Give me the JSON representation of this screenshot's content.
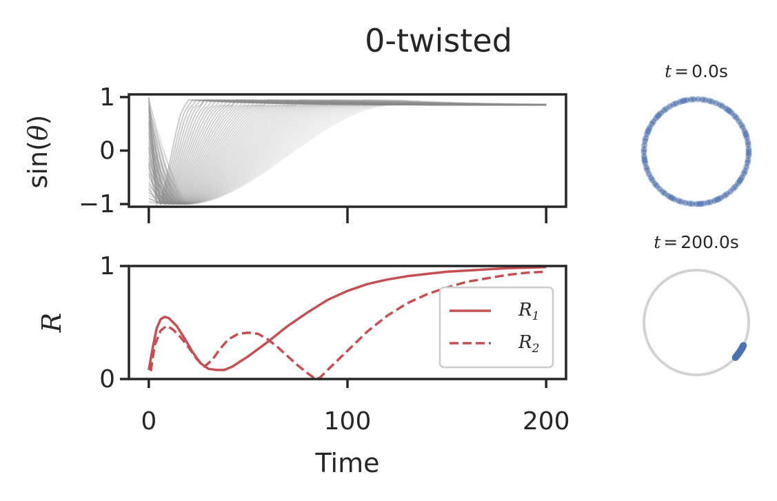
{
  "title": "0-twisted",
  "colors": {
    "axis": "#262626",
    "trajectory": "#8c8c8c",
    "order_param": "#c44e52",
    "oscillator": "#4c72b0",
    "ring": "#d3d3d3"
  },
  "chart_data": [
    {
      "type": "line",
      "panel": "sin-theta",
      "title": "",
      "xlabel": "",
      "ylabel": "sin(θ)",
      "ylabel_func": "sin",
      "ylabel_var": "θ",
      "xlim": [
        -10,
        210
      ],
      "ylim": [
        -1.05,
        1.05
      ],
      "xticks": [
        0,
        100,
        200
      ],
      "yticks": [
        -1,
        0,
        1
      ],
      "ytick_labels": [
        "−1",
        "0",
        "1"
      ],
      "grid": false,
      "description_of_series": "many oscillator trajectories",
      "n_trajectories": 60,
      "final_value": 0.85
    },
    {
      "type": "line",
      "panel": "order-parameter",
      "xlabel": "Time",
      "ylabel": "R",
      "xlim": [
        -10,
        210
      ],
      "ylim": [
        0,
        1
      ],
      "xticks": [
        0,
        100,
        200
      ],
      "xtick_labels": [
        "0",
        "100",
        "200"
      ],
      "yticks": [
        0,
        1
      ],
      "ytick_labels": [
        "0",
        "1"
      ],
      "grid": false,
      "legend_position": "center-right",
      "series": [
        {
          "name": "R₁",
          "name_base": "R",
          "name_sub": "1",
          "style": "solid",
          "x": [
            0,
            2,
            4,
            6,
            8,
            10,
            14,
            18,
            22,
            26,
            30,
            34,
            38,
            42,
            50,
            60,
            70,
            80,
            90,
            100,
            110,
            120,
            130,
            140,
            150,
            160,
            170,
            180,
            190,
            200
          ],
          "y": [
            0.08,
            0.28,
            0.45,
            0.53,
            0.55,
            0.54,
            0.47,
            0.36,
            0.24,
            0.14,
            0.09,
            0.08,
            0.08,
            0.11,
            0.2,
            0.33,
            0.47,
            0.59,
            0.7,
            0.78,
            0.84,
            0.88,
            0.91,
            0.93,
            0.95,
            0.96,
            0.97,
            0.98,
            0.985,
            0.99
          ]
        },
        {
          "name": "R₂",
          "name_base": "R",
          "name_sub": "2",
          "style": "dashed",
          "x": [
            1,
            3,
            6,
            9,
            12,
            16,
            20,
            24,
            28,
            32,
            36,
            40,
            45,
            50,
            55,
            60,
            65,
            70,
            75,
            80,
            84,
            86,
            90,
            100,
            110,
            120,
            130,
            140,
            150,
            160,
            170,
            180,
            190,
            200
          ],
          "y": [
            0.07,
            0.3,
            0.43,
            0.47,
            0.44,
            0.37,
            0.28,
            0.18,
            0.11,
            0.17,
            0.27,
            0.35,
            0.4,
            0.41,
            0.4,
            0.35,
            0.28,
            0.2,
            0.12,
            0.05,
            0.0,
            0.01,
            0.08,
            0.25,
            0.42,
            0.56,
            0.67,
            0.75,
            0.81,
            0.86,
            0.89,
            0.92,
            0.94,
            0.95
          ]
        }
      ]
    },
    {
      "type": "scatter",
      "panel": "phase-circle-initial",
      "title": "t = 0.0s",
      "title_var": "t",
      "title_eq": "=",
      "title_value": "0.0s",
      "n_points": 100,
      "distribution": "uniform around circle"
    },
    {
      "type": "scatter",
      "panel": "phase-circle-final",
      "title": "t = 200.0s",
      "title_var": "t",
      "title_eq": "=",
      "title_value": "200.0s",
      "n_points": 100,
      "cluster_angle_deg": [
        -42,
        -26
      ]
    }
  ]
}
